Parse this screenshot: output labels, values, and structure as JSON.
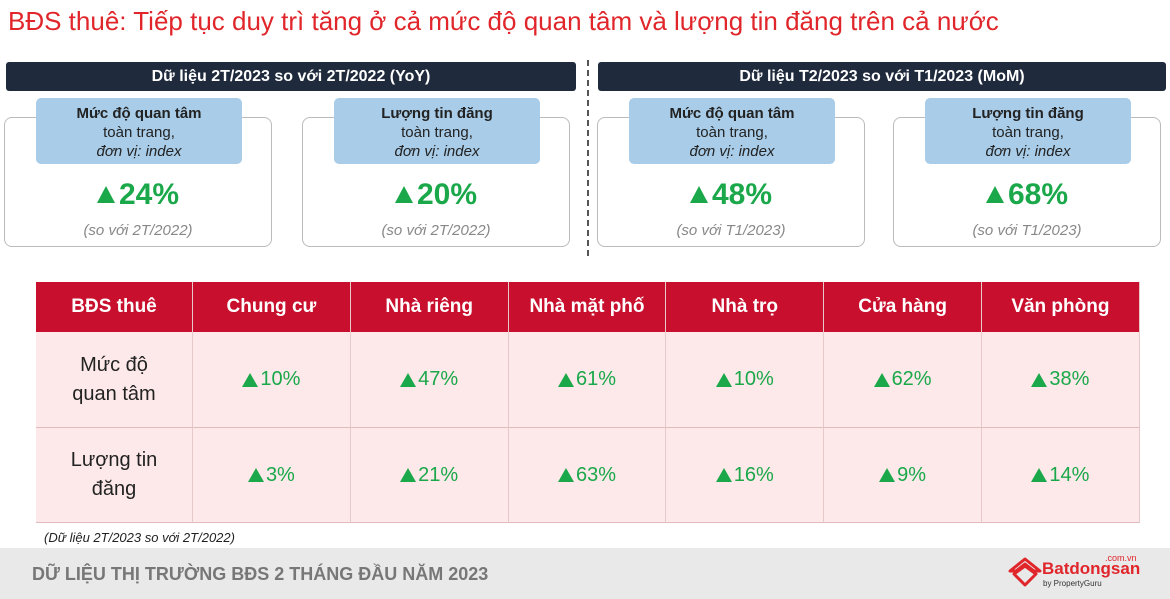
{
  "title": "BĐS thuê: Tiếp tục duy trì tăng ở cả mức độ quan tâm và lượng tin đăng trên cả nước",
  "panels": [
    {
      "header": "Dữ liệu 2T/2023 so với 2T/2022 (YoY)",
      "cards": [
        {
          "label": "Mức độ quan tâm",
          "scope": "toàn trang,",
          "unit": "đơn vị: index",
          "value": "24%",
          "note": "(so với 2T/2022)"
        },
        {
          "label": "Lượng tin đăng",
          "scope": "toàn trang,",
          "unit": "đơn vị: index",
          "value": "20%",
          "note": "(so với 2T/2022)"
        }
      ]
    },
    {
      "header": "Dữ liệu T2/2023 so với T1/2023 (MoM)",
      "cards": [
        {
          "label": "Mức độ quan tâm",
          "scope": "toàn trang,",
          "unit": "đơn vị: index",
          "value": "48%",
          "note": "(so với T1/2023)"
        },
        {
          "label": "Lượng tin đăng",
          "scope": "toàn trang,",
          "unit": "đơn vị: index",
          "value": "68%",
          "note": "(so với T1/2023)"
        }
      ]
    }
  ],
  "table": {
    "header": [
      "BĐS thuê",
      "Chung cư",
      "Nhà riêng",
      "Nhà mặt phố",
      "Nhà trọ",
      "Cửa hàng",
      "Văn phòng"
    ],
    "rows": [
      [
        "Mức độ quan tâm",
        "10%",
        "47%",
        "61%",
        "10%",
        "62%",
        "38%"
      ],
      [
        "Lượng tin đăng",
        "3%",
        "21%",
        "63%",
        "16%",
        "9%",
        "14%"
      ]
    ]
  },
  "footnote": "(Dữ liệu 2T/2023 so với 2T/2022)",
  "footer": {
    "text": "DỮ LIỆU THỊ TRƯỜNG BĐS 2 THÁNG ĐẦU NĂM 2023",
    "logo": "Batdongsan",
    "logo_domain": ".com.vn",
    "logo_tagline": "by PropertyGuru"
  }
}
